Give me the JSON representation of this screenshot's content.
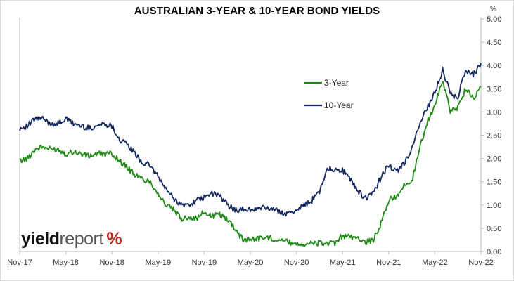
{
  "chart_data": {
    "type": "line",
    "title": "AUSTRALIAN 3-YEAR & 10-YEAR BOND YIELDS",
    "unit": "%",
    "x_ticks": [
      "Nov-17",
      "May-18",
      "Nov-18",
      "May-19",
      "Nov-19",
      "May-20",
      "Nov-20",
      "May-21",
      "Nov-21",
      "May-22",
      "Nov-22"
    ],
    "y_ticks": [
      "0.00",
      "0.50",
      "1.00",
      "1.50",
      "2.00",
      "2.50",
      "3.00",
      "3.50",
      "4.00",
      "4.50",
      "5.00"
    ],
    "ylim": [
      0,
      5
    ],
    "grid": false,
    "legend_position": "center-right",
    "x": [
      "2017-11",
      "2017-12",
      "2018-01",
      "2018-02",
      "2018-03",
      "2018-04",
      "2018-05",
      "2018-06",
      "2018-07",
      "2018-08",
      "2018-09",
      "2018-10",
      "2018-11",
      "2018-12",
      "2019-01",
      "2019-02",
      "2019-03",
      "2019-04",
      "2019-05",
      "2019-06",
      "2019-07",
      "2019-08",
      "2019-09",
      "2019-10",
      "2019-11",
      "2019-12",
      "2020-01",
      "2020-02",
      "2020-03",
      "2020-04",
      "2020-05",
      "2020-06",
      "2020-07",
      "2020-08",
      "2020-09",
      "2020-10",
      "2020-11",
      "2020-12",
      "2021-01",
      "2021-02",
      "2021-03",
      "2021-04",
      "2021-05",
      "2021-06",
      "2021-07",
      "2021-08",
      "2021-09",
      "2021-10",
      "2021-11",
      "2021-12",
      "2022-01",
      "2022-02",
      "2022-03",
      "2022-04",
      "2022-05",
      "2022-06",
      "2022-07",
      "2022-08",
      "2022-09",
      "2022-10",
      "2022-11"
    ],
    "series": [
      {
        "name": "3-Year",
        "color": "#1e8a14",
        "values": [
          1.95,
          2.0,
          2.2,
          2.25,
          2.2,
          2.2,
          2.1,
          2.15,
          2.1,
          2.05,
          2.1,
          2.1,
          2.1,
          1.95,
          1.8,
          1.65,
          1.55,
          1.5,
          1.25,
          1.0,
          0.9,
          0.7,
          0.75,
          0.7,
          0.85,
          0.75,
          0.8,
          0.7,
          0.5,
          0.26,
          0.27,
          0.28,
          0.3,
          0.28,
          0.25,
          0.2,
          0.17,
          0.16,
          0.17,
          0.18,
          0.18,
          0.16,
          0.35,
          0.3,
          0.3,
          0.2,
          0.25,
          0.6,
          1.1,
          1.2,
          1.4,
          1.5,
          2.2,
          2.8,
          3.1,
          3.7,
          3.0,
          3.1,
          3.5,
          3.3,
          3.55
        ]
      },
      {
        "name": "10-Year",
        "color": "#14285e",
        "values": [
          2.65,
          2.7,
          2.85,
          2.85,
          2.75,
          2.75,
          2.85,
          2.75,
          2.7,
          2.65,
          2.7,
          2.75,
          2.7,
          2.4,
          2.3,
          2.1,
          1.9,
          1.85,
          1.6,
          1.35,
          1.15,
          1.0,
          1.0,
          1.1,
          1.15,
          1.25,
          1.2,
          1.0,
          0.9,
          0.9,
          0.9,
          0.92,
          0.95,
          0.9,
          0.85,
          0.8,
          0.9,
          1.0,
          1.1,
          1.3,
          1.8,
          1.75,
          1.75,
          1.55,
          1.3,
          1.15,
          1.25,
          1.6,
          1.85,
          1.7,
          1.9,
          2.2,
          2.7,
          3.1,
          3.4,
          3.9,
          3.4,
          3.3,
          3.9,
          3.8,
          4.05
        ]
      }
    ]
  },
  "brand": {
    "part1": "yield",
    "part2": "report",
    "part3": "%"
  }
}
